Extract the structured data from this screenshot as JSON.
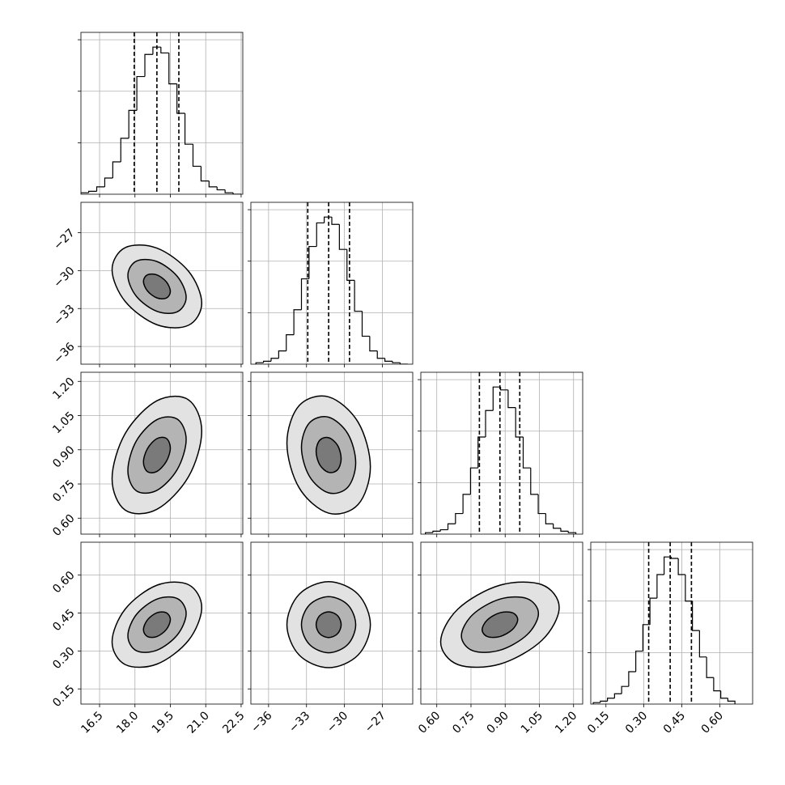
{
  "chart_data": {
    "type": "corner",
    "grid": true,
    "color": "#000000",
    "params": [
      {
        "lim": [
          15.71,
          22.57
        ],
        "ticks": [
          16.5,
          {
            "value": 18,
            "label": "18.0"
          },
          19.5,
          {
            "value": 21,
            "label": "21.0"
          },
          22.5
        ]
      },
      {
        "lim": [
          -37.4,
          -24.6
        ],
        "ticks": [
          {
            "value": -36,
            "label": "−36"
          },
          {
            "value": -33,
            "label": "−33"
          },
          {
            "value": -30,
            "label": "−30"
          },
          {
            "value": -27,
            "label": "−27"
          }
        ]
      },
      {
        "lim": [
          0.53,
          1.24
        ],
        "ticks": [
          {
            "value": 0.6,
            "label": "0.60"
          },
          {
            "value": 0.75,
            "label": "0.75"
          },
          {
            "value": 0.9,
            "label": "0.90"
          },
          {
            "value": 1.05,
            "label": "1.05"
          },
          {
            "value": 1.2,
            "label": "1.20"
          }
        ]
      },
      {
        "lim": [
          0.09,
          0.73
        ],
        "ticks": [
          0.15,
          {
            "value": 0.3,
            "label": "0.30"
          },
          0.45,
          {
            "value": 0.6,
            "label": "0.60"
          }
        ]
      }
    ],
    "hist_ylim": [
      0,
      110
    ],
    "hist_yticks": [
      35,
      70,
      105
    ],
    "histograms": [
      {
        "bins": [
          15.7,
          16.04,
          16.38,
          16.72,
          17.06,
          17.4,
          17.74,
          18.08,
          18.42,
          18.76,
          19.1,
          19.44,
          19.78,
          20.12,
          20.46,
          20.8,
          21.14,
          21.48,
          21.82,
          22.16,
          22.5
        ],
        "counts": [
          1,
          2,
          5,
          11,
          22,
          38,
          57,
          80,
          95,
          100,
          96,
          75,
          55,
          34,
          19,
          9,
          5,
          3,
          1,
          0
        ],
        "quantiles": [
          17.97,
          18.93,
          19.86
        ]
      },
      {
        "bins": [
          -37,
          -36.4,
          -35.8,
          -35.2,
          -34.6,
          -34,
          -33.4,
          -32.8,
          -32.2,
          -31.6,
          -31,
          -30.4,
          -29.8,
          -29.2,
          -28.6,
          -28,
          -27.4,
          -26.8,
          -26.2,
          -25.6,
          -25
        ],
        "counts": [
          1,
          2,
          4,
          9,
          20,
          37,
          58,
          80,
          96,
          100,
          95,
          78,
          57,
          36,
          19,
          9,
          4,
          2,
          1,
          0
        ],
        "quantiles": [
          -32.9,
          -31.25,
          -29.6
        ]
      },
      {
        "bins": [
          0.55,
          0.583,
          0.616,
          0.649,
          0.682,
          0.715,
          0.748,
          0.781,
          0.814,
          0.847,
          0.88,
          0.913,
          0.946,
          0.979,
          1.012,
          1.045,
          1.078,
          1.111,
          1.144,
          1.177,
          1.21
        ],
        "counts": [
          1,
          2,
          3,
          7,
          14,
          27,
          45,
          66,
          84,
          100,
          98,
          86,
          66,
          45,
          27,
          14,
          7,
          4,
          2,
          1
        ],
        "quantiles": [
          0.787,
          0.877,
          0.964
        ]
      },
      {
        "bins": [
          0.1,
          0.128,
          0.156,
          0.184,
          0.212,
          0.24,
          0.268,
          0.296,
          0.324,
          0.352,
          0.38,
          0.408,
          0.436,
          0.464,
          0.492,
          0.52,
          0.548,
          0.576,
          0.604,
          0.632,
          0.66
        ],
        "counts": [
          1,
          2,
          4,
          7,
          12,
          22,
          36,
          54,
          72,
          88,
          100,
          99,
          88,
          70,
          50,
          32,
          18,
          9,
          4,
          2
        ],
        "quantiles": [
          0.319,
          0.404,
          0.488
        ]
      }
    ],
    "contours": [
      {
        "levels": [
          {
            "x": [
              20.83,
              20.27,
              18.93,
              17.59,
              17.03,
              17.59,
              18.93,
              20.27
            ],
            "y": [
              -32.57,
              -30.05,
              -28.22,
              -28.18,
              -29.93,
              -32.45,
              -34.28,
              -34.32
            ]
          },
          {
            "x": [
              20.17,
              19.8,
              18.93,
              18.06,
              17.7,
              18.06,
              18.93,
              19.8
            ],
            "y": [
              -32.11,
              -30.47,
              -29.28,
              -29.25,
              -30.39,
              -32.03,
              -33.22,
              -33.25
            ]
          },
          {
            "x": [
              19.5,
              19.33,
              18.93,
              18.53,
              18.36,
              18.53,
              18.93,
              19.33
            ],
            "y": [
              -31.65,
              -30.89,
              -30.34,
              -30.33,
              -30.85,
              -31.61,
              -32.16,
              -32.17
            ]
          }
        ]
      },
      {
        "levels": [
          {
            "x": [
              20.83,
              20.27,
              18.93,
              17.59,
              17.03,
              17.59,
              18.93,
              20.27
            ],
            "y": [
              0.981,
              1.119,
              1.115,
              0.972,
              0.773,
              0.635,
              0.639,
              0.782
            ]
          },
          {
            "x": [
              20.17,
              19.8,
              18.93,
              18.06,
              17.7,
              18.06,
              18.93,
              19.8
            ],
            "y": [
              0.945,
              1.034,
              1.032,
              0.939,
              0.809,
              0.72,
              0.722,
              0.815
            ]
          },
          {
            "x": [
              19.5,
              19.33,
              18.93,
              18.53,
              18.36,
              18.53,
              18.93,
              19.33
            ],
            "y": [
              0.908,
              0.95,
              0.949,
              0.905,
              0.846,
              0.804,
              0.805,
              0.849
            ]
          }
        ]
      },
      {
        "levels": [
          {
            "x": [
              -27.95,
              -28.92,
              -31.25,
              -33.58,
              -34.55,
              -33.58,
              -31.25,
              -28.92
            ],
            "y": [
              0.825,
              1.021,
              1.132,
              1.094,
              0.929,
              0.733,
              0.622,
              0.66
            ]
          },
          {
            "x": [
              -29.11,
              -29.73,
              -31.25,
              -32.77,
              -33.4,
              -32.77,
              -31.25,
              -29.73
            ],
            "y": [
              0.843,
              0.97,
              1.043,
              1.018,
              0.911,
              0.784,
              0.711,
              0.736
            ]
          },
          {
            "x": [
              -30.26,
              -30.55,
              -31.25,
              -31.95,
              -32.24,
              -31.95,
              -31.25,
              -30.55
            ],
            "y": [
              0.861,
              0.92,
              0.953,
              0.942,
              0.893,
              0.834,
              0.801,
              0.812
            ]
          }
        ]
      },
      {
        "levels": [
          {
            "x": [
              20.83,
              20.27,
              18.93,
              17.59,
              17.03,
              17.59,
              18.93,
              20.27
            ],
            "y": [
              0.472,
              0.562,
              0.56,
              0.466,
              0.336,
              0.246,
              0.248,
              0.342
            ]
          },
          {
            "x": [
              20.17,
              19.8,
              18.93,
              18.06,
              17.7,
              18.06,
              18.93,
              19.8
            ],
            "y": [
              0.448,
              0.507,
              0.505,
              0.444,
              0.36,
              0.301,
              0.303,
              0.364
            ]
          },
          {
            "x": [
              19.5,
              19.33,
              18.93,
              18.53,
              18.36,
              18.53,
              18.93,
              19.33
            ],
            "y": [
              0.424,
              0.451,
              0.451,
              0.423,
              0.384,
              0.357,
              0.357,
              0.385
            ]
          }
        ]
      },
      {
        "levels": [
          {
            "x": [
              -27.95,
              -28.92,
              -31.25,
              -33.58,
              -34.55,
              -33.58,
              -31.25,
              -28.92
            ],
            "y": [
              0.404,
              0.524,
              0.574,
              0.524,
              0.404,
              0.284,
              0.234,
              0.284
            ]
          },
          {
            "x": [
              -29.11,
              -29.73,
              -31.25,
              -32.77,
              -33.4,
              -32.77,
              -31.25,
              -29.73
            ],
            "y": [
              0.404,
              0.482,
              0.515,
              0.482,
              0.404,
              0.326,
              0.293,
              0.326
            ]
          },
          {
            "x": [
              -30.26,
              -30.55,
              -31.25,
              -31.95,
              -32.24,
              -31.95,
              -31.25,
              -30.55
            ],
            "y": [
              0.404,
              0.44,
              0.455,
              0.44,
              0.404,
              0.368,
              0.353,
              0.368
            ]
          }
        ]
      },
      {
        "levels": [
          {
            "x": [
              1.137,
              1.061,
              0.877,
              0.693,
              0.617,
              0.693,
              0.877,
              1.061
            ],
            "y": [
              0.472,
              0.562,
              0.56,
              0.466,
              0.336,
              0.246,
              0.248,
              0.342
            ]
          },
          {
            "x": [
              1.046,
              0.996,
              0.877,
              0.758,
              0.708,
              0.758,
              0.877,
              0.996
            ],
            "y": [
              0.448,
              0.507,
              0.505,
              0.444,
              0.36,
              0.301,
              0.303,
              0.364
            ]
          },
          {
            "x": [
              0.955,
              0.932,
              0.877,
              0.822,
              0.799,
              0.822,
              0.877,
              0.932
            ],
            "y": [
              0.424,
              0.451,
              0.451,
              0.423,
              0.384,
              0.357,
              0.357,
              0.385
            ]
          }
        ]
      }
    ]
  }
}
